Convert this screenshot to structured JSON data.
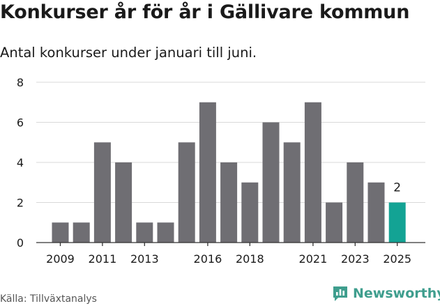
{
  "title": "Konkurser år för år i Gällivare kommun",
  "subtitle": "Antal konkurser under januari till juni.",
  "source": "Källa: Tillväxtanalys",
  "brand": {
    "name": "Newsworthy",
    "logo_icon": "bar-chart-logo-icon"
  },
  "colors": {
    "bar": "#6f6e73",
    "highlight": "#13a394",
    "grid": "#d9d9d9",
    "brand": "#3f9e8e"
  },
  "chart_data": {
    "type": "bar",
    "categories": [
      "2009",
      "2010",
      "2011",
      "2012",
      "2013",
      "2014",
      "2015",
      "2016",
      "2017",
      "2018",
      "2019",
      "2020",
      "2021",
      "2022",
      "2023",
      "2024",
      "2025"
    ],
    "values": [
      1,
      1,
      5,
      4,
      1,
      1,
      5,
      7,
      4,
      3,
      6,
      5,
      7,
      2,
      4,
      3,
      2
    ],
    "x_tick_labels": [
      "2009",
      "2011",
      "2013",
      "2016",
      "2018",
      "2021",
      "2023",
      "2025"
    ],
    "y_ticks": [
      0,
      2,
      4,
      6,
      8
    ],
    "ylim": [
      0,
      8
    ],
    "grid": true,
    "highlight_category": "2025",
    "data_labels": [
      {
        "category": "2025",
        "text": "2"
      }
    ]
  }
}
